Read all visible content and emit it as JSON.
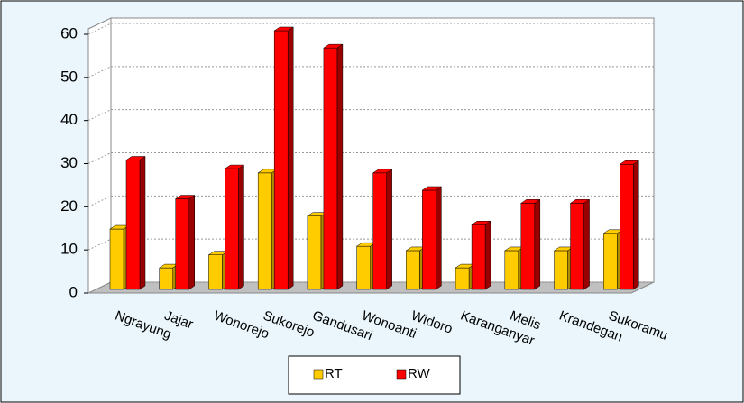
{
  "chart_data": {
    "type": "bar3d",
    "categories": [
      "Ngrayung",
      "Jajar",
      "Wonorejo",
      "Sukorejo",
      "Gandusari",
      "Wonoanti",
      "Widoro",
      "Karanganyar",
      "Melis",
      "Krandegan",
      "Sukoramu"
    ],
    "series": [
      {
        "name": "RT",
        "color": "#ffcc00",
        "values": [
          14,
          5,
          8,
          27,
          17,
          10,
          9,
          5,
          9,
          9,
          13
        ]
      },
      {
        "name": "RW",
        "color": "#ff0000",
        "values": [
          30,
          21,
          28,
          60,
          56,
          27,
          23,
          15,
          20,
          20,
          29
        ]
      }
    ],
    "ylim": [
      0,
      60
    ],
    "yticks": [
      0,
      10,
      20,
      30,
      40,
      50,
      60
    ],
    "grid": true,
    "legend": "bottom"
  }
}
